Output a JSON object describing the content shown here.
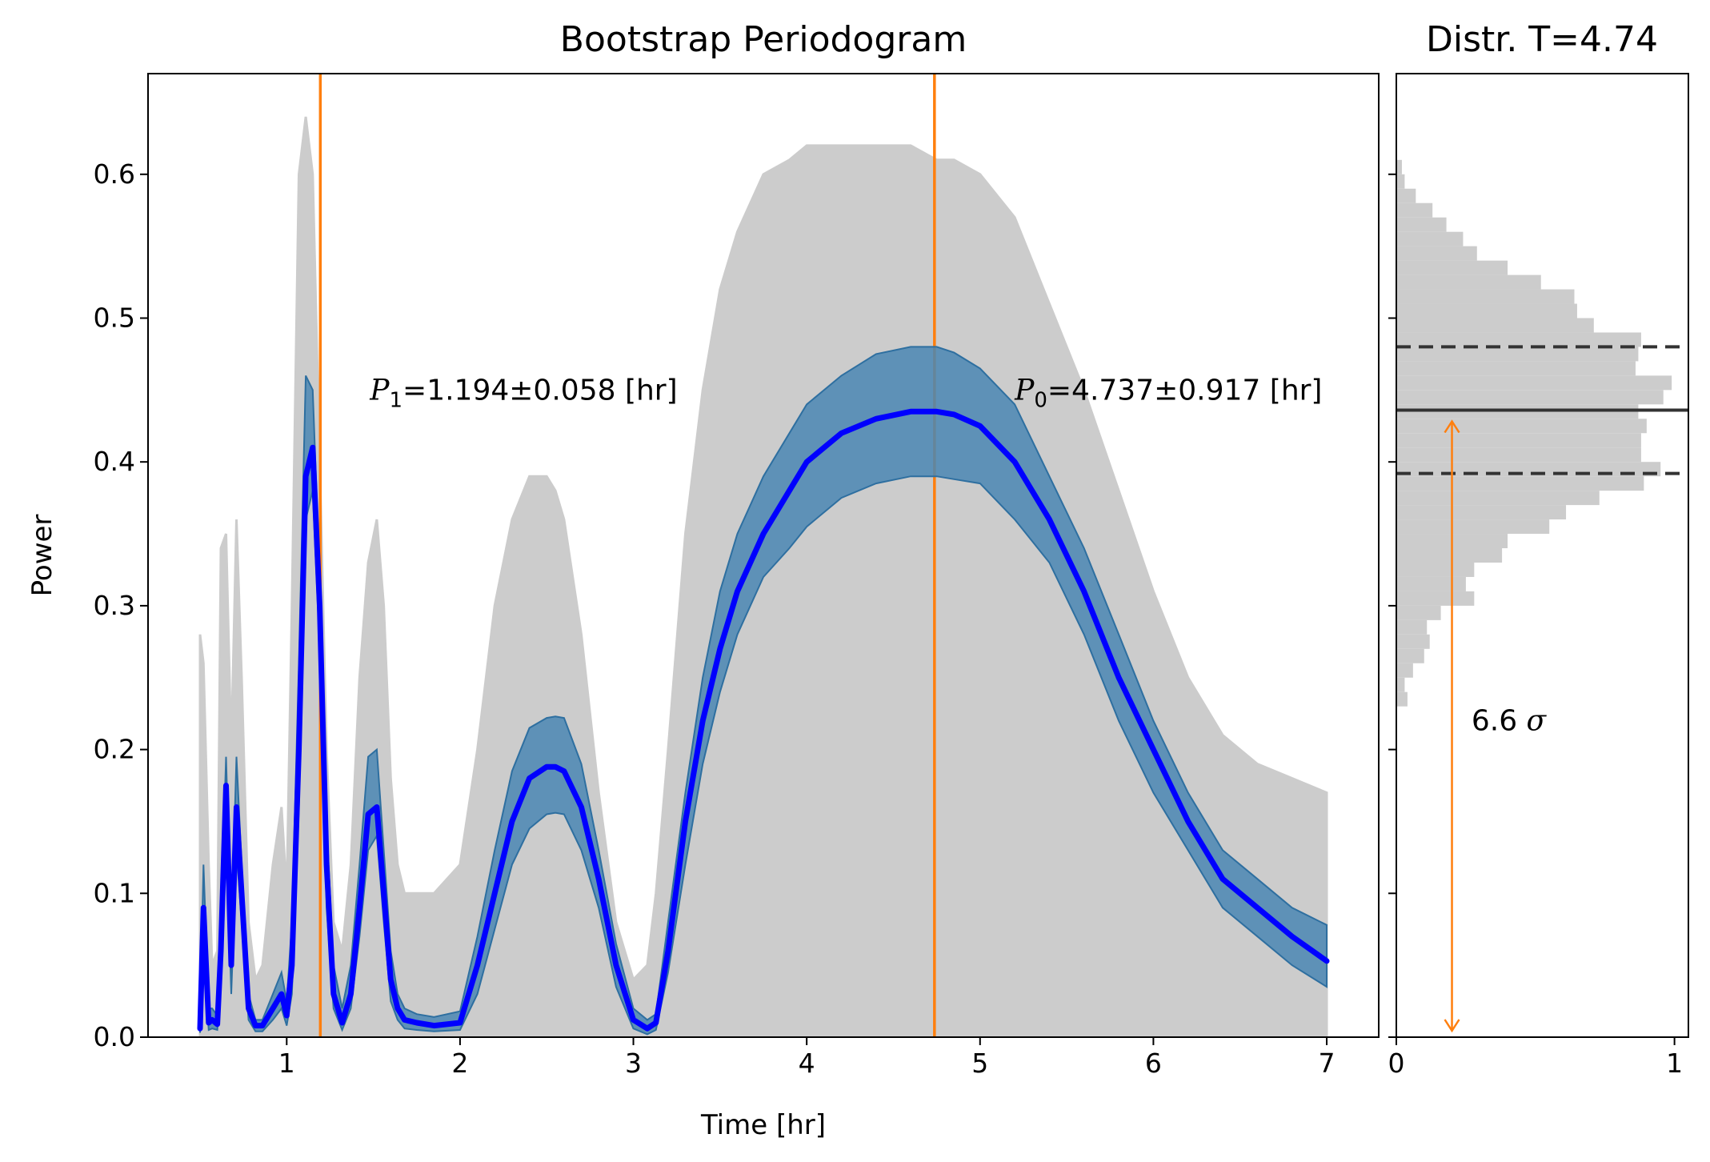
{
  "chart_data": [
    {
      "type": "line",
      "title": "Bootstrap Periodogram",
      "xlabel": "Time [hr]",
      "ylabel": "Power",
      "xlim": [
        0.2,
        7.3
      ],
      "ylim": [
        0.0,
        0.67
      ],
      "xticks": [
        1,
        2,
        3,
        4,
        5,
        6,
        7
      ],
      "xtick_labels": [
        "1",
        "2",
        "3",
        "4",
        "5",
        "6",
        "7"
      ],
      "yticks": [
        0.0,
        0.1,
        0.2,
        0.3,
        0.4,
        0.5,
        0.6
      ],
      "ytick_labels": [
        "0.0",
        "0.1",
        "0.2",
        "0.3",
        "0.4",
        "0.5",
        "0.6"
      ],
      "colors": {
        "median_line": "#0000ff",
        "band_fill": "#4a86b3",
        "band_edge": "#2e6fa0",
        "bootstrap_cloud": "#cccccc",
        "period_lines": "#ff7f0e"
      },
      "series": [
        {
          "name": "bootstrap median power",
          "x": [
            0.5,
            0.52,
            0.55,
            0.57,
            0.6,
            0.62,
            0.65,
            0.68,
            0.71,
            0.74,
            0.78,
            0.82,
            0.86,
            0.92,
            0.97,
            1.0,
            1.03,
            1.07,
            1.11,
            1.15,
            1.19,
            1.23,
            1.27,
            1.32,
            1.37,
            1.42,
            1.47,
            1.52,
            1.56,
            1.6,
            1.64,
            1.68,
            1.75,
            1.85,
            2.0,
            2.1,
            2.2,
            2.3,
            2.4,
            2.5,
            2.55,
            2.6,
            2.7,
            2.8,
            2.9,
            3.0,
            3.08,
            3.13,
            3.2,
            3.3,
            3.4,
            3.5,
            3.6,
            3.75,
            3.9,
            4.0,
            4.2,
            4.4,
            4.6,
            4.75,
            4.85,
            5.0,
            5.2,
            5.4,
            5.6,
            5.8,
            6.0,
            6.2,
            6.4,
            6.6,
            6.8,
            7.0
          ],
          "values": [
            0.006,
            0.09,
            0.01,
            0.012,
            0.009,
            0.06,
            0.175,
            0.05,
            0.16,
            0.1,
            0.02,
            0.008,
            0.008,
            0.02,
            0.03,
            0.015,
            0.05,
            0.2,
            0.39,
            0.41,
            0.3,
            0.12,
            0.03,
            0.01,
            0.03,
            0.09,
            0.155,
            0.16,
            0.1,
            0.04,
            0.02,
            0.012,
            0.01,
            0.008,
            0.01,
            0.05,
            0.1,
            0.15,
            0.18,
            0.188,
            0.188,
            0.185,
            0.16,
            0.11,
            0.05,
            0.012,
            0.006,
            0.01,
            0.06,
            0.15,
            0.22,
            0.27,
            0.31,
            0.35,
            0.38,
            0.4,
            0.42,
            0.43,
            0.435,
            0.435,
            0.433,
            0.425,
            0.4,
            0.36,
            0.31,
            0.25,
            0.2,
            0.15,
            0.11,
            0.09,
            0.07,
            0.053
          ]
        }
      ],
      "uncertainty_band": {
        "upper": [
          0.01,
          0.12,
          0.02,
          0.02,
          0.015,
          0.08,
          0.195,
          0.07,
          0.195,
          0.12,
          0.03,
          0.012,
          0.012,
          0.03,
          0.045,
          0.025,
          0.08,
          0.26,
          0.46,
          0.45,
          0.32,
          0.15,
          0.05,
          0.02,
          0.05,
          0.12,
          0.195,
          0.2,
          0.13,
          0.06,
          0.03,
          0.02,
          0.016,
          0.014,
          0.018,
          0.07,
          0.13,
          0.185,
          0.215,
          0.222,
          0.223,
          0.222,
          0.19,
          0.13,
          0.065,
          0.02,
          0.012,
          0.016,
          0.08,
          0.17,
          0.25,
          0.31,
          0.35,
          0.39,
          0.42,
          0.44,
          0.46,
          0.475,
          0.48,
          0.48,
          0.476,
          0.465,
          0.44,
          0.39,
          0.34,
          0.28,
          0.22,
          0.17,
          0.13,
          0.11,
          0.09,
          0.078
        ],
        "lower": [
          0.003,
          0.06,
          0.005,
          0.006,
          0.005,
          0.04,
          0.15,
          0.03,
          0.13,
          0.08,
          0.012,
          0.004,
          0.004,
          0.012,
          0.02,
          0.008,
          0.03,
          0.16,
          0.36,
          0.38,
          0.27,
          0.09,
          0.02,
          0.005,
          0.02,
          0.07,
          0.13,
          0.14,
          0.08,
          0.025,
          0.012,
          0.006,
          0.005,
          0.004,
          0.005,
          0.03,
          0.075,
          0.12,
          0.145,
          0.155,
          0.156,
          0.155,
          0.13,
          0.09,
          0.035,
          0.006,
          0.002,
          0.005,
          0.045,
          0.12,
          0.19,
          0.24,
          0.28,
          0.32,
          0.34,
          0.355,
          0.375,
          0.385,
          0.39,
          0.39,
          0.388,
          0.385,
          0.36,
          0.33,
          0.28,
          0.22,
          0.17,
          0.13,
          0.09,
          0.07,
          0.05,
          0.035
        ]
      },
      "bootstrap_envelope": {
        "upper": [
          0.28,
          0.26,
          0.12,
          0.05,
          0.06,
          0.34,
          0.35,
          0.2,
          0.36,
          0.25,
          0.08,
          0.04,
          0.05,
          0.12,
          0.16,
          0.1,
          0.3,
          0.6,
          0.64,
          0.6,
          0.4,
          0.2,
          0.08,
          0.06,
          0.12,
          0.25,
          0.33,
          0.36,
          0.3,
          0.18,
          0.12,
          0.1,
          0.1,
          0.1,
          0.12,
          0.2,
          0.3,
          0.36,
          0.39,
          0.39,
          0.38,
          0.36,
          0.28,
          0.17,
          0.08,
          0.04,
          0.05,
          0.1,
          0.2,
          0.35,
          0.45,
          0.52,
          0.56,
          0.6,
          0.61,
          0.62,
          0.62,
          0.62,
          0.62,
          0.61,
          0.61,
          0.6,
          0.57,
          0.51,
          0.45,
          0.38,
          0.31,
          0.25,
          0.21,
          0.19,
          0.18,
          0.17
        ],
        "lower": [
          0.0,
          0.0,
          0.0,
          0.0,
          0.0,
          0.0,
          0.0,
          0.0,
          0.0,
          0.0,
          0.0,
          0.0,
          0.0,
          0.0,
          0.0,
          0.0,
          0.0,
          0.0,
          0.0,
          0.0,
          0.0,
          0.0,
          0.0,
          0.0,
          0.0,
          0.0,
          0.0,
          0.0,
          0.0,
          0.0,
          0.0,
          0.0,
          0.0,
          0.0,
          0.0,
          0.0,
          0.0,
          0.0,
          0.0,
          0.0,
          0.0,
          0.0,
          0.0,
          0.0,
          0.0,
          0.0,
          0.0,
          0.0,
          0.0,
          0.0,
          0.0,
          0.0,
          0.0,
          0.0,
          0.0,
          0.0,
          0.0,
          0.0,
          0.0,
          0.0,
          0.0,
          0.0,
          0.0,
          0.0,
          0.0,
          0.0,
          0.0,
          0.0,
          0.0,
          0.0,
          0.0,
          0.0
        ]
      },
      "vertical_lines": [
        1.194,
        4.737
      ],
      "annotations": [
        {
          "symbol": "P",
          "sub": "1",
          "text": "=1.194±0.058 [hr]",
          "x": 1.48,
          "y": 0.45
        },
        {
          "symbol": "P",
          "sub": "0",
          "text": "=4.737±0.917 [hr]",
          "x": 5.2,
          "y": 0.45
        }
      ]
    },
    {
      "type": "histogram",
      "orientation": "horizontal",
      "title": "Distr. T=4.74",
      "xlim": [
        0,
        1.05
      ],
      "ylim": [
        0.0,
        0.67
      ],
      "xticks": [
        0,
        1
      ],
      "xtick_labels": [
        "0",
        "1"
      ],
      "bin_width": 0.01,
      "bins_start": [
        0.23,
        0.24,
        0.25,
        0.26,
        0.27,
        0.28,
        0.29,
        0.3,
        0.31,
        0.32,
        0.33,
        0.34,
        0.35,
        0.36,
        0.37,
        0.38,
        0.39,
        0.4,
        0.41,
        0.42,
        0.43,
        0.44,
        0.45,
        0.46,
        0.47,
        0.48,
        0.49,
        0.5,
        0.51,
        0.52,
        0.53,
        0.54,
        0.55,
        0.56,
        0.57,
        0.58,
        0.59,
        0.6
      ],
      "values": [
        0.04,
        0.03,
        0.06,
        0.1,
        0.12,
        0.11,
        0.16,
        0.28,
        0.25,
        0.28,
        0.38,
        0.4,
        0.55,
        0.61,
        0.73,
        0.89,
        0.95,
        0.88,
        0.88,
        0.9,
        0.87,
        0.96,
        0.99,
        0.86,
        0.87,
        0.88,
        0.71,
        0.65,
        0.64,
        0.52,
        0.4,
        0.29,
        0.24,
        0.18,
        0.13,
        0.07,
        0.03,
        0.02
      ],
      "median": 0.436,
      "band": [
        0.392,
        0.48
      ],
      "sigma_arrow": {
        "from": 0.0,
        "to": 0.436,
        "x": 0.2
      },
      "annotation": {
        "text": "6.6 ",
        "symbol": "σ",
        "x": 0.27,
        "y": 0.22
      },
      "colors": {
        "bars": "#cccccc",
        "lines": "#333333",
        "arrow": "#ff7f0e"
      }
    }
  ]
}
